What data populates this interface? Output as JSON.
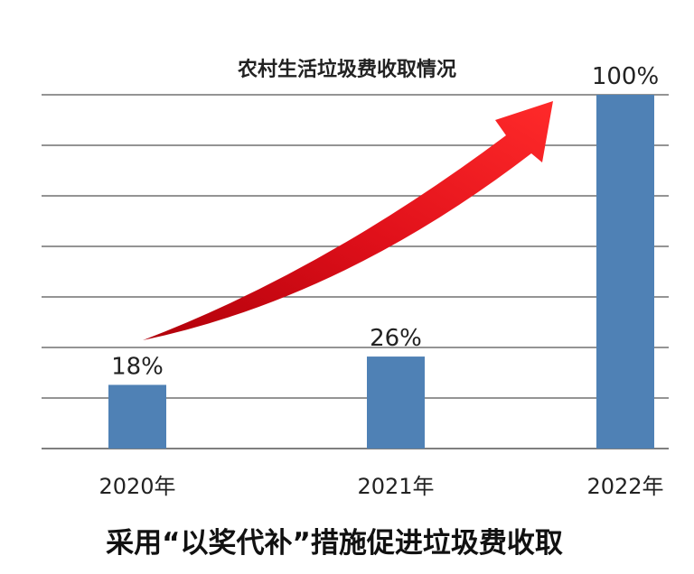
{
  "chart_data": {
    "type": "bar",
    "title": "农村生活垃圾费收取情况",
    "categories": [
      "2020年",
      "2021年",
      "2022年"
    ],
    "values": [
      18,
      26,
      100
    ],
    "value_labels": [
      "18%",
      "26%",
      "100%"
    ],
    "unit": "%",
    "ylim": [
      0,
      100
    ],
    "grid": true,
    "legend": "none",
    "bar_color": "#4f81b5",
    "grid_color": "#555555",
    "arrow_color": "#e0101a",
    "caption": "采用“以奖代补”措施促进垃圾费收取"
  }
}
